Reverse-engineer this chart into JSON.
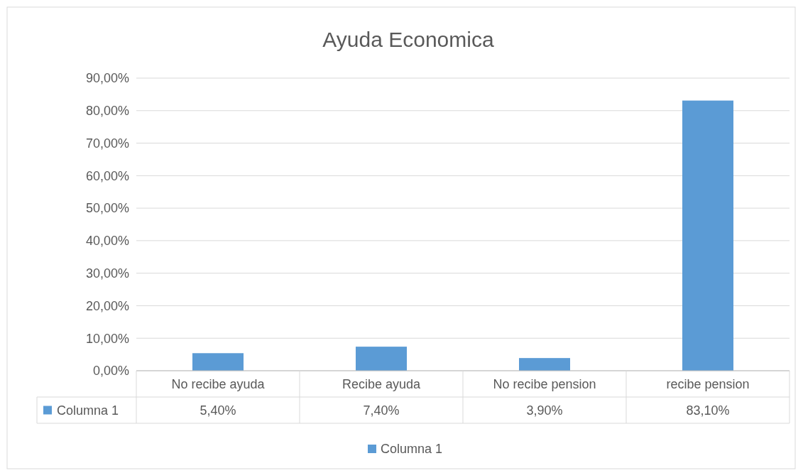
{
  "chart_data": {
    "type": "bar",
    "title": "Ayuda Economica",
    "categories": [
      "No recibe ayuda",
      "Recibe ayuda",
      "No recibe pension",
      "recibe pension"
    ],
    "series": [
      {
        "name": "Columna 1",
        "color": "#5b9bd5",
        "values": [
          5.4,
          7.4,
          3.9,
          83.1
        ],
        "value_labels": [
          "5,40%",
          "7,40%",
          "3,90%",
          "83,10%"
        ]
      }
    ],
    "ylim": [
      0,
      90
    ],
    "yticks": [
      {
        "value": 0,
        "label": "0,00%"
      },
      {
        "value": 10,
        "label": "10,00%"
      },
      {
        "value": 20,
        "label": "20,00%"
      },
      {
        "value": 30,
        "label": "30,00%"
      },
      {
        "value": 40,
        "label": "40,00%"
      },
      {
        "value": 50,
        "label": "50,00%"
      },
      {
        "value": 60,
        "label": "60,00%"
      },
      {
        "value": 70,
        "label": "70,00%"
      },
      {
        "value": 80,
        "label": "80,00%"
      },
      {
        "value": 90,
        "label": "90,00%"
      }
    ],
    "grid": "y",
    "legend": "bottom"
  }
}
